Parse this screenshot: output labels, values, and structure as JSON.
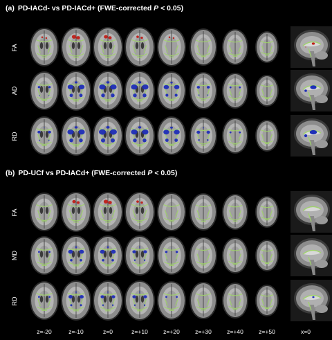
{
  "panels": [
    {
      "letter": "(a)",
      "title_main": "PD-IACd- vs PD-IACd+ (FWE-corrected ",
      "title_p": "P",
      "title_tail": " < 0.05)",
      "rows": [
        {
          "label": "FA",
          "overlay": "red"
        },
        {
          "label": "AD",
          "overlay": "blue"
        },
        {
          "label": "RD",
          "overlay": "blue"
        }
      ]
    },
    {
      "letter": "(b)",
      "title_main": "PD-UCf vs PD-IACd+ (FWE-corrected ",
      "title_p": "P",
      "title_tail": " < 0.05)",
      "rows": [
        {
          "label": "FA",
          "overlay": "red"
        },
        {
          "label": "MD",
          "overlay": "blue"
        },
        {
          "label": "RD",
          "overlay": "blue"
        }
      ]
    }
  ],
  "slice_labels": [
    "z=-20",
    "z=-10",
    "z=0",
    "z=+10",
    "z=+20",
    "z=+30",
    "z=+40",
    "z=+50",
    "x=0"
  ],
  "colors": {
    "background": "#000000",
    "skeleton": "#9fd36a",
    "overlay_red": "#c0201a",
    "overlay_blue": "#1f2fb8",
    "brain": "#8c8c8c"
  }
}
